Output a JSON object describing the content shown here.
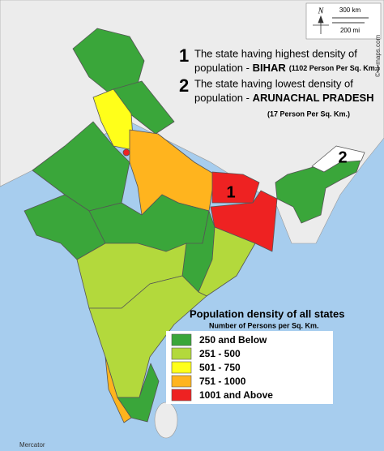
{
  "annotations": {
    "highest": {
      "number": "1",
      "line1": "The state having highest density of",
      "line2": "population - ",
      "state": "BIHAR",
      "note": "(1102 Person Per Sq. Km.)"
    },
    "lowest": {
      "number": "2",
      "line1": "The state having lowest density of",
      "line2": "population  - ",
      "state": "ARUNACHAL PRADESH",
      "note": "(17 Person Per Sq. Km.)"
    }
  },
  "markers": [
    "1",
    "2"
  ],
  "legend": {
    "title": "Population density of all states",
    "subtitle": "Number of Persons per Sq. Km.",
    "items": [
      {
        "label": "250 and Below",
        "color": "#3aa63a"
      },
      {
        "label": "251 - 500",
        "color": "#b3d93c"
      },
      {
        "label": "501 - 750",
        "color": "#ffff1a"
      },
      {
        "label": "751 - 1000",
        "color": "#ffb41e"
      },
      {
        "label": "1001 and Above",
        "color": "#ee2222"
      }
    ]
  },
  "scale": {
    "north": "N",
    "km": "300 km",
    "mi": "200 mi"
  },
  "credit": "© d-maps.com",
  "projection": "Mercator"
}
